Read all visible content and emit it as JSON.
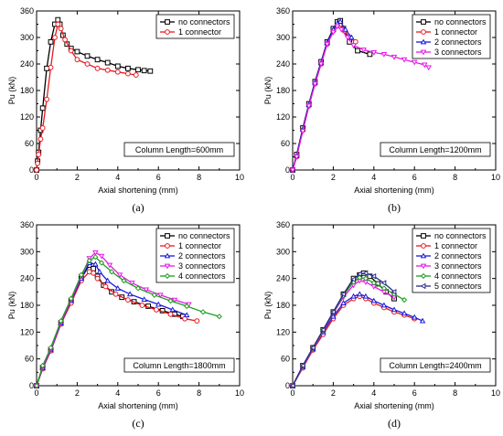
{
  "chart_data": [
    {
      "type": "line",
      "panel_label": "(a)",
      "xlabel": "Axial shortening (mm)",
      "ylabel": "Pu (kN)",
      "xlim": [
        0,
        10
      ],
      "ylim": [
        0,
        360
      ],
      "xticks": [
        0,
        2,
        4,
        6,
        8,
        10
      ],
      "yticks": [
        0,
        60,
        120,
        180,
        240,
        300,
        360
      ],
      "grid": false,
      "legend_position": "top-right",
      "annotation": "Column Length=600mm",
      "series": [
        {
          "name": "no connectors",
          "color": "#000000",
          "marker": "square",
          "x": [
            0,
            0.05,
            0.1,
            0.2,
            0.3,
            0.5,
            0.7,
            0.9,
            1.05,
            1.15,
            1.3,
            1.5,
            1.7,
            2.0,
            2.5,
            3.0,
            3.5,
            4.0,
            4.5,
            5.0,
            5.3,
            5.6
          ],
          "y": [
            0,
            20,
            40,
            90,
            140,
            230,
            290,
            330,
            340,
            330,
            305,
            285,
            275,
            268,
            258,
            250,
            243,
            235,
            230,
            227,
            225,
            224
          ]
        },
        {
          "name": "1 connector",
          "color": "#e8191f",
          "marker": "circle",
          "x": [
            0,
            0.05,
            0.1,
            0.2,
            0.3,
            0.5,
            0.7,
            0.9,
            1.05,
            1.2,
            1.4,
            1.7,
            2.0,
            2.5,
            3.0,
            3.5,
            4.0,
            4.5,
            4.9
          ],
          "y": [
            0,
            15,
            35,
            70,
            95,
            160,
            232,
            300,
            330,
            320,
            295,
            270,
            250,
            240,
            230,
            226,
            222,
            218,
            215
          ]
        }
      ]
    },
    {
      "type": "line",
      "panel_label": "(b)",
      "xlabel": "Axial shortening (mm)",
      "ylabel": "Pu (kN)",
      "xlim": [
        0,
        10
      ],
      "ylim": [
        0,
        360
      ],
      "xticks": [
        0,
        2,
        4,
        6,
        8,
        10
      ],
      "yticks": [
        0,
        60,
        120,
        180,
        240,
        300,
        360
      ],
      "grid": false,
      "legend_position": "top-right",
      "annotation": "Column Length=1200mm",
      "series": [
        {
          "name": "no connectors",
          "color": "#000000",
          "marker": "square",
          "x": [
            0,
            0.2,
            0.5,
            0.8,
            1.1,
            1.4,
            1.7,
            2.0,
            2.2,
            2.35,
            2.5,
            2.8,
            3.2,
            3.8
          ],
          "y": [
            0,
            35,
            95,
            150,
            200,
            245,
            290,
            320,
            335,
            338,
            320,
            290,
            270,
            262
          ]
        },
        {
          "name": "1 connector",
          "color": "#e8191f",
          "marker": "circle",
          "x": [
            0,
            0.2,
            0.5,
            0.8,
            1.1,
            1.4,
            1.7,
            2.0,
            2.2,
            2.35,
            2.55,
            2.8,
            3.1
          ],
          "y": [
            0,
            30,
            90,
            145,
            195,
            240,
            285,
            315,
            328,
            330,
            315,
            300,
            290
          ]
        },
        {
          "name": "2 connectors",
          "color": "#1a1adb",
          "marker": "triangle-up",
          "x": [
            0,
            0.2,
            0.5,
            0.8,
            1.1,
            1.4,
            1.7,
            2.0,
            2.2,
            2.35,
            2.6,
            2.9
          ],
          "y": [
            0,
            32,
            92,
            148,
            198,
            242,
            288,
            318,
            332,
            336,
            318,
            300
          ]
        },
        {
          "name": "3 connectors",
          "color": "#e619e6",
          "marker": "triangle-down",
          "x": [
            0,
            0.2,
            0.5,
            0.8,
            1.1,
            1.4,
            1.7,
            2.0,
            2.2,
            2.4,
            2.7,
            3.0,
            3.5,
            4.0,
            4.5,
            5.0,
            5.5,
            6.0,
            6.5,
            6.7
          ],
          "y": [
            0,
            30,
            88,
            145,
            195,
            240,
            285,
            312,
            325,
            318,
            300,
            282,
            272,
            266,
            262,
            256,
            250,
            244,
            238,
            232
          ]
        }
      ]
    },
    {
      "type": "line",
      "panel_label": "(c)",
      "xlabel": "Axial shortening (mm)",
      "ylabel": "Pu (kN)",
      "xlim": [
        0,
        10
      ],
      "ylim": [
        0,
        360
      ],
      "xticks": [
        0,
        2,
        4,
        6,
        8,
        10
      ],
      "yticks": [
        0,
        60,
        120,
        180,
        240,
        300,
        360
      ],
      "grid": false,
      "legend_position": "top-right",
      "annotation": "Column Length=1800mm",
      "series": [
        {
          "name": "no connectors",
          "color": "#000000",
          "marker": "square",
          "x": [
            0,
            0.3,
            0.7,
            1.2,
            1.7,
            2.2,
            2.6,
            2.8,
            3.0,
            3.3,
            3.7,
            4.2,
            4.8,
            5.5,
            6.2,
            6.8,
            7.2
          ],
          "y": [
            0,
            40,
            80,
            140,
            190,
            240,
            270,
            262,
            245,
            225,
            210,
            198,
            188,
            178,
            168,
            160,
            155
          ]
        },
        {
          "name": "1 connector",
          "color": "#e8191f",
          "marker": "circle",
          "x": [
            0,
            0.3,
            0.7,
            1.2,
            1.7,
            2.2,
            2.6,
            2.8,
            3.0,
            3.4,
            3.9,
            4.5,
            5.2,
            5.9,
            6.6,
            7.3,
            7.9
          ],
          "y": [
            0,
            38,
            78,
            138,
            185,
            235,
            255,
            252,
            240,
            222,
            205,
            192,
            180,
            170,
            160,
            150,
            145
          ]
        },
        {
          "name": "2 connectors",
          "color": "#1a1adb",
          "marker": "triangle-up",
          "x": [
            0,
            0.3,
            0.7,
            1.2,
            1.7,
            2.2,
            2.6,
            2.9,
            3.1,
            3.5,
            4.0,
            4.6,
            5.3,
            6.0,
            6.7,
            7.4
          ],
          "y": [
            0,
            40,
            80,
            140,
            190,
            240,
            275,
            272,
            255,
            235,
            218,
            205,
            193,
            182,
            170,
            158
          ]
        },
        {
          "name": "3 connectors",
          "color": "#e619e6",
          "marker": "triangle-down",
          "x": [
            0,
            0.3,
            0.7,
            1.2,
            1.7,
            2.2,
            2.6,
            2.9,
            3.2,
            3.6,
            4.1,
            4.7,
            5.4,
            6.1,
            6.8,
            7.5
          ],
          "y": [
            0,
            42,
            82,
            142,
            192,
            245,
            285,
            298,
            290,
            270,
            248,
            230,
            215,
            203,
            192,
            182
          ]
        },
        {
          "name": "4 connectors",
          "color": "#1f9e1f",
          "marker": "diamond",
          "x": [
            0,
            0.3,
            0.7,
            1.2,
            1.7,
            2.2,
            2.6,
            2.9,
            3.2,
            3.7,
            4.3,
            5.0,
            5.8,
            6.6,
            7.4,
            8.2,
            9.0
          ],
          "y": [
            0,
            45,
            85,
            145,
            195,
            248,
            280,
            288,
            275,
            255,
            235,
            218,
            203,
            190,
            178,
            165,
            155
          ]
        }
      ]
    },
    {
      "type": "line",
      "panel_label": "(d)",
      "xlabel": "Axial shortening (mm)",
      "ylabel": "Pu (kN)",
      "xlim": [
        0,
        10
      ],
      "ylim": [
        0,
        360
      ],
      "xticks": [
        0,
        2,
        4,
        6,
        8,
        10
      ],
      "yticks": [
        0,
        60,
        120,
        180,
        240,
        300,
        360
      ],
      "grid": false,
      "legend_position": "top-right",
      "annotation": "Column Length=2400mm",
      "series": [
        {
          "name": "no connectors",
          "color": "#000000",
          "marker": "square",
          "x": [
            0,
            0.5,
            1.0,
            1.5,
            2.0,
            2.5,
            3.0,
            3.3,
            3.5,
            3.8,
            4.2,
            4.6,
            5.0
          ],
          "y": [
            0,
            45,
            85,
            125,
            165,
            205,
            240,
            248,
            252,
            245,
            228,
            210,
            195
          ]
        },
        {
          "name": "1 connector",
          "color": "#e8191f",
          "marker": "circle",
          "x": [
            0,
            0.5,
            1.0,
            1.5,
            2.0,
            2.5,
            3.0,
            3.3,
            3.6,
            4.0,
            4.5,
            5.0,
            5.5,
            6.0
          ],
          "y": [
            0,
            40,
            80,
            115,
            150,
            180,
            195,
            200,
            195,
            185,
            175,
            165,
            158,
            150
          ]
        },
        {
          "name": "2 connectors",
          "color": "#1a1adb",
          "marker": "triangle-up",
          "x": [
            0,
            0.5,
            1.0,
            1.5,
            2.0,
            2.5,
            3.0,
            3.3,
            3.6,
            4.0,
            4.5,
            5.0,
            5.5,
            6.0,
            6.4
          ],
          "y": [
            0,
            42,
            82,
            120,
            155,
            185,
            200,
            205,
            200,
            190,
            180,
            170,
            162,
            153,
            145
          ]
        },
        {
          "name": "3 connectors",
          "color": "#e619e6",
          "marker": "triangle-down",
          "x": [
            0,
            0.5,
            1.0,
            1.5,
            2.0,
            2.5,
            3.0,
            3.3,
            3.6,
            4.0,
            4.5,
            5.0
          ],
          "y": [
            0,
            42,
            82,
            122,
            162,
            198,
            225,
            235,
            232,
            222,
            210,
            198
          ]
        },
        {
          "name": "4 connectors",
          "color": "#1f9e1f",
          "marker": "diamond",
          "x": [
            0,
            0.5,
            1.0,
            1.5,
            2.0,
            2.5,
            3.0,
            3.3,
            3.6,
            4.0,
            4.5,
            5.0,
            5.5
          ],
          "y": [
            0,
            44,
            84,
            124,
            164,
            202,
            232,
            242,
            240,
            230,
            218,
            205,
            192
          ]
        },
        {
          "name": "5 connectors",
          "color": "#2a2a8c",
          "marker": "triangle-left",
          "x": [
            0,
            0.5,
            1.0,
            1.5,
            2.0,
            2.5,
            3.0,
            3.3,
            3.6,
            4.0,
            4.5,
            5.0
          ],
          "y": [
            0,
            45,
            85,
            125,
            165,
            205,
            238,
            250,
            252,
            245,
            230,
            210
          ]
        }
      ]
    }
  ]
}
